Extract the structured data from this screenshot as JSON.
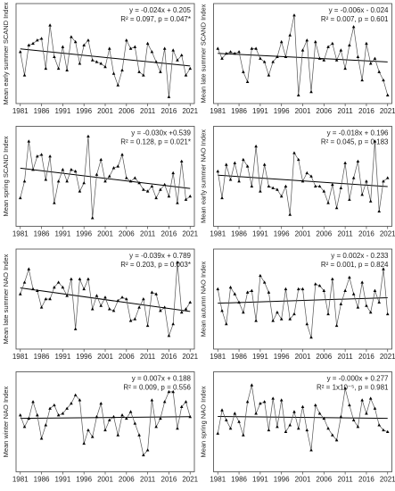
{
  "chart_data": [
    {
      "type": "line",
      "y_label": "Mean early summer SCAND Index",
      "annotations": [
        "y = -0.024x + 0.205",
        "R² = 0.097, p = 0.047*"
      ],
      "color": "#000000",
      "trendline": true,
      "x": [
        1981,
        1982,
        1983,
        1984,
        1985,
        1986,
        1987,
        1988,
        1989,
        1990,
        1991,
        1992,
        1993,
        1994,
        1995,
        1996,
        1997,
        1998,
        1999,
        2000,
        2001,
        2002,
        2003,
        2004,
        2005,
        2006,
        2007,
        2008,
        2009,
        2010,
        2011,
        2012,
        2013,
        2014,
        2015,
        2016,
        2017,
        2018,
        2019,
        2020,
        2021
      ],
      "values": [
        0.1,
        -1.3,
        0.5,
        0.6,
        0.8,
        0.9,
        -0.9,
        1.7,
        -0.2,
        -0.9,
        0.4,
        -1.0,
        1.0,
        0.7,
        -0.6,
        0.5,
        0.8,
        -0.4,
        -0.5,
        -0.6,
        -0.8,
        0.3,
        -1.2,
        -1.9,
        -1.0,
        0.8,
        0.3,
        0.4,
        -1.1,
        -1.3,
        0.6,
        0.1,
        -0.5,
        -1.1,
        0.3,
        -2.6,
        0.2,
        -0.4,
        -0.1,
        -1.3,
        -0.9
      ],
      "xlim": [
        1980,
        2022
      ],
      "xticks": [
        1981,
        1986,
        1991,
        1996,
        2001,
        2006,
        2011,
        2016,
        2021
      ],
      "ylim": [
        -3,
        3
      ]
    },
    {
      "type": "line",
      "y_label": "Mean late summer SCAND Index",
      "annotations": [
        "y = -0.006x - 0.024",
        "R² = 0.007, p = 0.601"
      ],
      "color": "#000000",
      "trendline": true,
      "x": [
        1981,
        1982,
        1983,
        1984,
        1985,
        1986,
        1987,
        1988,
        1989,
        1990,
        1991,
        1992,
        1993,
        1994,
        1995,
        1996,
        1997,
        1998,
        1999,
        2000,
        2001,
        2002,
        2003,
        2004,
        2005,
        2006,
        2007,
        2008,
        2009,
        2010,
        2011,
        2012,
        2013,
        2014,
        2015,
        2016,
        2017,
        2018,
        2019,
        2020,
        2021
      ],
      "values": [
        0.3,
        -0.3,
        0.0,
        0.1,
        0.0,
        0.1,
        -1.1,
        -1.7,
        0.3,
        0.3,
        -0.3,
        -0.5,
        -1.3,
        -0.5,
        -0.2,
        0.7,
        -0.2,
        1.1,
        2.3,
        -2.5,
        0.2,
        0.8,
        -2.3,
        0.7,
        -0.3,
        -0.4,
        0.4,
        0.6,
        -0.4,
        0.2,
        -0.9,
        0.5,
        1.6,
        -0.2,
        -1.6,
        0.6,
        -0.6,
        -0.3,
        -1.1,
        -1.6,
        -2.5
      ],
      "xlim": [
        1980,
        2022
      ],
      "xticks": [
        1981,
        1986,
        1991,
        1996,
        2001,
        2006,
        2011,
        2016,
        2021
      ],
      "ylim": [
        -3,
        3
      ]
    },
    {
      "type": "line",
      "y_label": "Mean spring SCAND Index",
      "annotations": [
        "y = -0.030x +0.539",
        "R² = 0.128, p = 0.021*"
      ],
      "color": "#000000",
      "trendline": true,
      "x": [
        1981,
        1982,
        1983,
        1984,
        1985,
        1986,
        1987,
        1988,
        1989,
        1990,
        1991,
        1992,
        1993,
        1994,
        1995,
        1996,
        1997,
        1998,
        1999,
        2000,
        2001,
        2002,
        2003,
        2004,
        2005,
        2006,
        2007,
        2008,
        2009,
        2010,
        2011,
        2012,
        2013,
        2014,
        2015,
        2016,
        2017,
        2018,
        2019,
        2020,
        2021
      ],
      "values": [
        -1.3,
        -0.3,
        2.1,
        0.4,
        1.2,
        1.3,
        -0.2,
        1.2,
        -1.6,
        -0.3,
        0.4,
        -0.3,
        0.4,
        0.3,
        -0.9,
        -0.4,
        2.4,
        -2.5,
        0.1,
        1.0,
        -0.3,
        0.0,
        0.5,
        0.6,
        1.3,
        -0.1,
        -0.3,
        -0.1,
        -0.4,
        -0.8,
        -0.9,
        -0.6,
        -1.3,
        -0.8,
        -0.5,
        -1.2,
        0.2,
        -1.6,
        0.9,
        -1.4,
        -1.2
      ],
      "xlim": [
        1980,
        2022
      ],
      "xticks": [
        1981,
        1986,
        1991,
        1996,
        2001,
        2006,
        2011,
        2016,
        2021
      ],
      "ylim": [
        -3,
        3
      ]
    },
    {
      "type": "line",
      "y_label": "Mean early summer NAO Index",
      "annotations": [
        "y = -0.018x + 0.196",
        "R² = 0.045, p = 0.183"
      ],
      "color": "#000000",
      "trendline": true,
      "x": [
        1981,
        1982,
        1983,
        1984,
        1985,
        1986,
        1987,
        1988,
        1989,
        1990,
        1991,
        1992,
        1993,
        1994,
        1995,
        1996,
        1997,
        1998,
        1999,
        2000,
        2001,
        2002,
        2003,
        2004,
        2005,
        2006,
        2007,
        2008,
        2009,
        2010,
        2011,
        2012,
        2013,
        2014,
        2015,
        2016,
        2017,
        2018,
        2019,
        2020,
        2021
      ],
      "values": [
        0.3,
        -1.3,
        0.7,
        -0.2,
        0.8,
        -0.3,
        1.0,
        0.6,
        -0.6,
        1.8,
        -0.9,
        0.7,
        -0.6,
        -0.7,
        -0.8,
        -1.2,
        -0.6,
        -2.3,
        1.4,
        1.0,
        -0.3,
        0.2,
        0.0,
        -0.6,
        -0.6,
        -0.9,
        -1.6,
        -0.5,
        -1.9,
        -0.7,
        0.8,
        -1.4,
        -0.1,
        0.9,
        -1.1,
        -0.3,
        -1.5,
        2.1,
        -2.1,
        -0.3,
        -0.1
      ],
      "xlim": [
        1980,
        2022
      ],
      "xticks": [
        1981,
        1986,
        1991,
        1996,
        2001,
        2006,
        2011,
        2016,
        2021
      ],
      "ylim": [
        -3,
        3
      ]
    },
    {
      "type": "line",
      "y_label": "Mean late summer NAO Index",
      "annotations": [
        "y = -0.039x + 0.789",
        "R² = 0.203, p = 0.003*"
      ],
      "color": "#000000",
      "trendline": true,
      "x": [
        1981,
        1982,
        1983,
        1984,
        1985,
        1986,
        1987,
        1988,
        1989,
        1990,
        1991,
        1992,
        1993,
        1994,
        1995,
        1996,
        1997,
        1998,
        1999,
        2000,
        2001,
        2002,
        2003,
        2004,
        2005,
        2006,
        2007,
        2008,
        2009,
        2010,
        2011,
        2012,
        2013,
        2014,
        2015,
        2016,
        2017,
        2018,
        2019,
        2020,
        2021
      ],
      "values": [
        0.3,
        1.0,
        1.8,
        0.6,
        0.5,
        -0.5,
        0.0,
        0.0,
        0.7,
        1.0,
        0.7,
        0.2,
        1.2,
        -1.8,
        1.2,
        0.6,
        1.2,
        -0.6,
        0.2,
        -0.4,
        0.1,
        -0.6,
        -0.7,
        -0.1,
        0.1,
        0.0,
        -1.3,
        -1.2,
        -0.5,
        0.0,
        -1.6,
        0.4,
        0.3,
        -0.7,
        -0.5,
        -2.2,
        -1.5,
        2.2,
        -0.8,
        -0.6,
        -0.2
      ],
      "xlim": [
        1980,
        2022
      ],
      "xticks": [
        1981,
        1986,
        1991,
        1996,
        2001,
        2006,
        2011,
        2016,
        2021
      ],
      "ylim": [
        -3,
        3
      ]
    },
    {
      "type": "line",
      "y_label": "Mean autumn NAO Index",
      "annotations": [
        "y = 0.002x - 0.233",
        "R² = 0.001, p = 0.824"
      ],
      "color": "#000000",
      "trendline": true,
      "x": [
        1981,
        1982,
        1983,
        1984,
        1985,
        1986,
        1987,
        1988,
        1989,
        1990,
        1991,
        1992,
        1993,
        1994,
        1995,
        1996,
        1997,
        1998,
        1999,
        2000,
        2001,
        2002,
        2003,
        2004,
        2005,
        2006,
        2007,
        2008,
        2009,
        2010,
        2011,
        2012,
        2013,
        2014,
        2015,
        2016,
        2017,
        2018,
        2019,
        2020,
        2021
      ],
      "values": [
        0.6,
        -0.7,
        -1.5,
        0.7,
        0.3,
        -0.2,
        -0.8,
        0.4,
        0.5,
        -1.3,
        1.4,
        1.0,
        0.4,
        -1.3,
        -0.8,
        -1.2,
        0.6,
        -1.2,
        -0.9,
        0.6,
        0.6,
        -1.5,
        -2.3,
        0.9,
        0.8,
        0.5,
        -0.9,
        1.2,
        -1.6,
        -0.3,
        0.5,
        1.3,
        0.3,
        -0.5,
        1.0,
        -0.4,
        -0.8,
        0.5,
        -0.2,
        1.8,
        -0.9
      ],
      "xlim": [
        1980,
        2022
      ],
      "xticks": [
        1981,
        1986,
        1991,
        1996,
        2001,
        2006,
        2011,
        2016,
        2021
      ],
      "ylim": [
        -3,
        3
      ]
    },
    {
      "type": "line",
      "y_label": "Mean winter NAO Index",
      "annotations": [
        "y = 0.007x + 0.188",
        "R² = 0.009, p = 0.556"
      ],
      "color": "#000000",
      "trendline": true,
      "x": [
        1981,
        1982,
        1983,
        1984,
        1985,
        1986,
        1987,
        1988,
        1989,
        1990,
        1991,
        1992,
        1993,
        1994,
        1995,
        1996,
        1997,
        1998,
        1999,
        2000,
        2001,
        2002,
        2003,
        2004,
        2005,
        2006,
        2007,
        2008,
        2009,
        2010,
        2011,
        2012,
        2013,
        2014,
        2015,
        2016,
        2017,
        2018,
        2019,
        2020,
        2021
      ],
      "values": [
        0.4,
        -0.3,
        0.2,
        1.2,
        0.4,
        -1.0,
        -0.2,
        0.8,
        1.0,
        0.4,
        0.5,
        0.8,
        1.1,
        1.6,
        1.3,
        -1.3,
        -0.5,
        -0.9,
        0.3,
        1.1,
        -0.5,
        0.1,
        0.3,
        -0.8,
        0.4,
        0.2,
        0.6,
        -0.1,
        -0.8,
        -2.0,
        -1.7,
        1.3,
        -0.3,
        0.2,
        1.2,
        1.8,
        1.8,
        -0.4,
        0.9,
        1.2,
        0.3
      ],
      "xlim": [
        1980,
        2022
      ],
      "xticks": [
        1981,
        1986,
        1991,
        1996,
        2001,
        2006,
        2011,
        2016,
        2021
      ],
      "ylim": [
        -3,
        3
      ]
    },
    {
      "type": "line",
      "y_label": "Mean spring NAO Index",
      "annotations": [
        "y = -0.000x + 0.277",
        "R² = 1x10⁻⁵, p = 0.981"
      ],
      "color": "#000000",
      "trendline": true,
      "x": [
        1981,
        1982,
        1983,
        1984,
        1985,
        1986,
        1987,
        1988,
        1989,
        1990,
        1991,
        1992,
        1993,
        1994,
        1995,
        1996,
        1997,
        1998,
        1999,
        2000,
        2001,
        2002,
        2003,
        2004,
        2005,
        2006,
        2007,
        2008,
        2009,
        2010,
        2011,
        2012,
        2013,
        2014,
        2015,
        2016,
        2017,
        2018,
        2019,
        2020,
        2021
      ],
      "values": [
        -0.7,
        0.7,
        0.1,
        -0.4,
        0.5,
        0.0,
        -0.8,
        1.2,
        2.2,
        0.5,
        1.1,
        1.2,
        -0.5,
        1.4,
        -0.3,
        1.3,
        -0.6,
        -0.2,
        0.6,
        -0.4,
        0.9,
        -0.5,
        -1.7,
        1.0,
        0.5,
        0.2,
        -0.4,
        -0.8,
        -1.1,
        0.3,
        2.0,
        1.0,
        0.1,
        -0.3,
        1.3,
        0.5,
        1.4,
        0.8,
        -0.2,
        -0.5,
        -0.6
      ],
      "xlim": [
        1980,
        2022
      ],
      "xticks": [
        1981,
        1986,
        1991,
        1996,
        2001,
        2006,
        2011,
        2016,
        2021
      ],
      "ylim": [
        -3,
        3
      ]
    }
  ]
}
